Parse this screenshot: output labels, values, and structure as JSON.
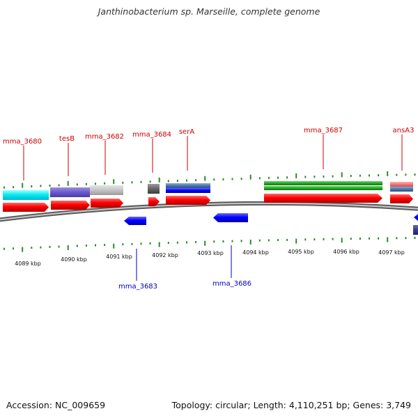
{
  "title": "Janthinobacterium sp. Marseille, complete genome",
  "footer": {
    "accession": "Accession: NC_009659",
    "summary": "Topology: circular; Length: 4,110,251 bp; Genes: 3,749"
  },
  "colors": {
    "top_label": "#cc0000",
    "bottom_label": "#0000bb",
    "tick": "#2a8a2a",
    "backbone": "#888888"
  },
  "scale_ticks": [
    "4089 kbp",
    "4090 kbp",
    "4091 kbp",
    "4092 kbp",
    "4093 kbp",
    "4094 kbp",
    "4095 kbp",
    "4096 kbp",
    "4097 kbp"
  ],
  "gene_labels_top": [
    "mma_3680",
    "tesB",
    "mma_3682",
    "mma_3684",
    "serA",
    "mma_3687",
    "ansA3"
  ],
  "gene_labels_bottom": [
    "mma_3683",
    "mma_3686"
  ]
}
